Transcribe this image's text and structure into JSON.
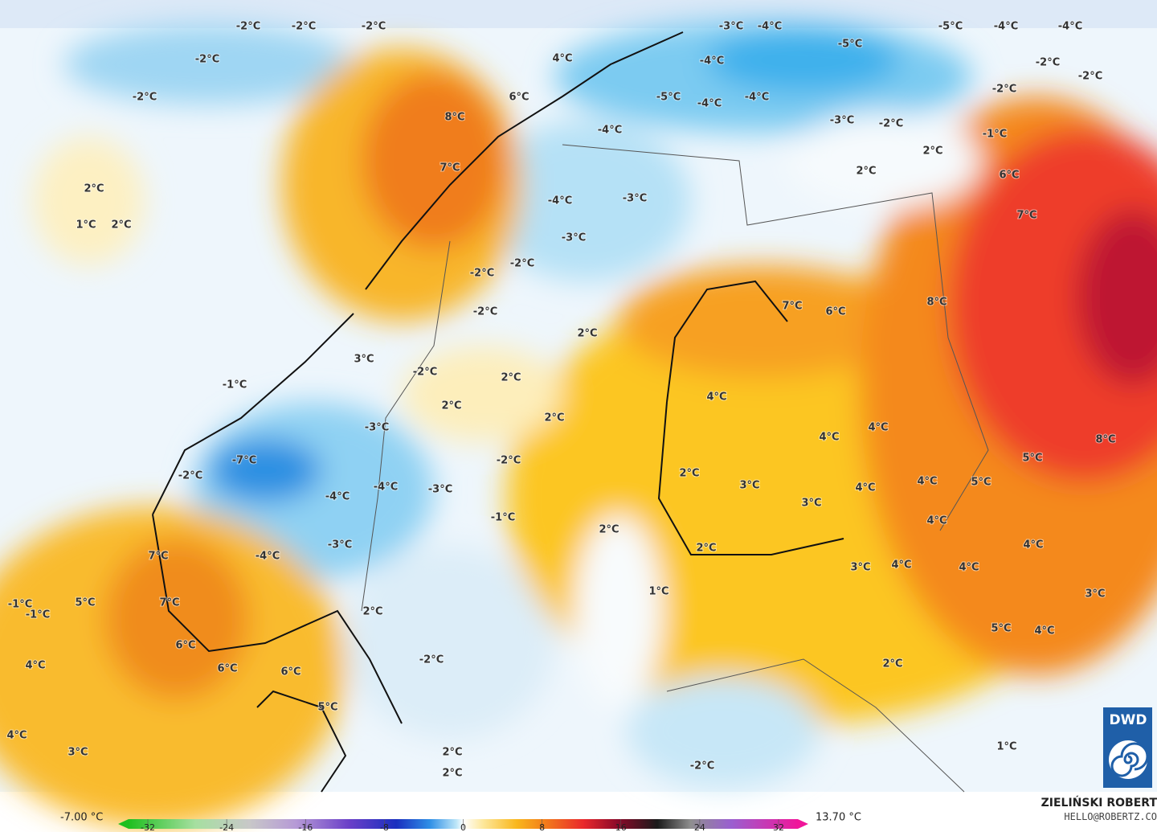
{
  "map": {
    "labels": [
      "-2°C",
      "-2°C",
      "-2°C",
      "-2°C",
      "-2°C",
      "2°C",
      "1°C",
      "2°C",
      "4°C",
      "6°C",
      "8°C",
      "7°C",
      "-3°C",
      "-4°C",
      "-4°C",
      "-5°C",
      "-5°C",
      "-4°C",
      "-4°C",
      "-2°C",
      "-2°C",
      "-2°C",
      "-5°C",
      "-4°C",
      "-4°C",
      "-3°C",
      "-2°C",
      "-1°C",
      "2°C",
      "2°C",
      "6°C",
      "7°C",
      "-4°C",
      "-3°C",
      "-4°C",
      "-3°C",
      "-2°C",
      "-2°C",
      "-2°C",
      "2°C",
      "7°C",
      "6°C",
      "8°C",
      "3°C",
      "-1°C",
      "-2°C",
      "2°C",
      "2°C",
      "2°C",
      "4°C",
      "-3°C",
      "4°C",
      "4°C",
      "8°C",
      "5°C",
      "-7°C",
      "-2°C",
      "-2°C",
      "-4°C",
      "-3°C",
      "-4°C",
      "2°C",
      "3°C",
      "4°C",
      "4°C",
      "5°C",
      "3°C",
      "-1°C",
      "2°C",
      "4°C",
      "4°C",
      "-3°C",
      "-4°C",
      "2°C",
      "7°C",
      "3°C",
      "4°C",
      "4°C",
      "3°C",
      "1°C",
      "7°C",
      "-1°C",
      "-1°C",
      "5°C",
      "2°C",
      "5°C",
      "4°C",
      "6°C",
      "6°C",
      "6°C",
      "4°C",
      "-2°C",
      "2°C",
      "5°C",
      "4°C",
      "3°C",
      "2°C",
      "1°C",
      "2°C",
      "-2°C"
    ]
  },
  "colorbar": {
    "min_label": "-7.00 °C",
    "max_label": "13.70 °C",
    "ticks": [
      -32,
      -24,
      -16,
      -8,
      0,
      8,
      16,
      24,
      32
    ]
  },
  "credit": {
    "name": "ZIELIŃSKI ROBERT",
    "email": "HELLO@ROBERTZ.CO"
  },
  "logo": "DWD"
}
